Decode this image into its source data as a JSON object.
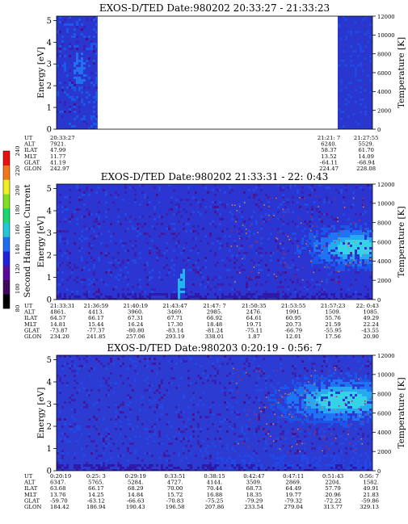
{
  "chart_data": [
    {
      "type": "heatmap",
      "title": "EXOS-D/TED   Date:980202  20:33:27 - 21:33:23",
      "ylabel": "Energy [eV]",
      "y2label": "Temperature [K]",
      "yticks": [
        "0",
        "1",
        "2",
        "3",
        "4",
        "5"
      ],
      "y2ticks": [
        "0",
        "2000",
        "4000",
        "6000",
        "8000",
        "10000",
        "12000"
      ],
      "ylim": [
        0,
        5.2
      ],
      "y2lim": [
        0,
        12000
      ],
      "data_segments": [
        [
          0,
          0.13
        ],
        [
          0.89,
          1.0
        ]
      ],
      "info_labels": [
        "UT",
        "ALT",
        "ILAT",
        "MLT",
        "GLAT",
        "GLON"
      ],
      "info_columns": [
        {
          "pos": 0.0,
          "values": [
            "20:33:27",
            "7921.",
            "47.99",
            "11.77",
            "41.19",
            "242.97"
          ]
        },
        {
          "pos": 0.862,
          "values": [
            "21:21: 7",
            "6240.",
            "58.37",
            "13.52",
            "-64.11",
            "224.47"
          ]
        },
        {
          "pos": 0.98,
          "values": [
            "21:27:55",
            "5529.",
            "61.70",
            "14.09",
            "-68.94",
            "228.08"
          ]
        }
      ]
    },
    {
      "type": "heatmap",
      "title": "EXOS-D/TED   Date:980202  21:33:31 - 22: 0:43",
      "ylabel": "Energy [eV]",
      "y2label": "Temperature [K]",
      "yticks": [
        "0",
        "1",
        "2",
        "3",
        "4",
        "5"
      ],
      "y2ticks": [
        "0",
        "2000",
        "4000",
        "6000",
        "8000",
        "10000",
        "12000"
      ],
      "ylim": [
        0,
        5.2
      ],
      "y2lim": [
        0,
        12000
      ],
      "data_segments": [
        [
          0,
          1.0
        ]
      ],
      "info_labels": [
        "UT",
        "ALT",
        "ILAT",
        "MLT",
        "GLAT",
        "GLON"
      ],
      "info_columns": [
        {
          "pos": 0.0,
          "values": [
            "21:33:31",
            "4861.",
            "64.57",
            "14.81",
            "-73.87",
            "234.20"
          ]
        },
        {
          "pos": 0.125,
          "values": [
            "21:36:59",
            "4413.",
            "66.17",
            "15.44",
            "-77.37",
            "241.85"
          ]
        },
        {
          "pos": 0.25,
          "values": [
            "21:40:19",
            "3960.",
            "67.31",
            "16.24",
            "-80.80",
            "257.06"
          ]
        },
        {
          "pos": 0.375,
          "values": [
            "21:43:47",
            "3469.",
            "67.71",
            "17.30",
            "-83.14",
            "293.19"
          ]
        },
        {
          "pos": 0.5,
          "values": [
            "21:47: 7",
            "2985.",
            "66.92",
            "18.48",
            "-81.24",
            "338.01"
          ]
        },
        {
          "pos": 0.625,
          "values": [
            "21:50:35",
            "2476.",
            "64.61",
            "19.71",
            "-75.11",
            "1.87"
          ]
        },
        {
          "pos": 0.75,
          "values": [
            "21:53:55",
            "1991.",
            "60.95",
            "20.73",
            "-66.79",
            "12.01"
          ]
        },
        {
          "pos": 0.875,
          "values": [
            "21:57:23",
            "1509.",
            "55.76",
            "21.59",
            "-55.95",
            "17.56"
          ]
        },
        {
          "pos": 1.0,
          "values": [
            "22: 0:43",
            "1085.",
            "49.29",
            "22.24",
            "-43.55",
            "20.90"
          ]
        }
      ]
    },
    {
      "type": "heatmap",
      "title": "EXOS-D/TED   Date:980203  0:20:19 - 0:56: 7",
      "ylabel": "Energy [eV]",
      "y2label": "Temperature [K]",
      "yticks": [
        "0",
        "1",
        "2",
        "3",
        "4",
        "5"
      ],
      "y2ticks": [
        "0",
        "2000",
        "4000",
        "6000",
        "8000",
        "10000",
        "12000"
      ],
      "ylim": [
        0,
        5.2
      ],
      "y2lim": [
        0,
        12000
      ],
      "data_segments": [
        [
          0,
          1.0
        ]
      ],
      "info_labels": [
        "UT",
        "ALT",
        "ILAT",
        "MLT",
        "GLAT",
        "GLON"
      ],
      "info_columns": [
        {
          "pos": 0.0,
          "values": [
            "0:20:19",
            "6347.",
            "63.68",
            "13.76",
            "-59.70",
            "184.42"
          ]
        },
        {
          "pos": 0.125,
          "values": [
            "0:25: 3",
            "5765.",
            "66.17",
            "14.25",
            "-63.12",
            "186.94"
          ]
        },
        {
          "pos": 0.25,
          "values": [
            "0:29:19",
            "5284.",
            "68.29",
            "14.84",
            "-66.63",
            "190.43"
          ]
        },
        {
          "pos": 0.375,
          "values": [
            "0:33:51",
            "4727.",
            "70.00",
            "15.72",
            "-70.83",
            "196.58"
          ]
        },
        {
          "pos": 0.5,
          "values": [
            "0:38:15",
            "4144.",
            "70.44",
            "16.88",
            "-75.25",
            "207.86"
          ]
        },
        {
          "pos": 0.625,
          "values": [
            "0:42:47",
            "3509.",
            "68.73",
            "18.35",
            "-79.29",
            "233.54"
          ]
        },
        {
          "pos": 0.75,
          "values": [
            "0:47:11",
            "2869.",
            "64.49",
            "19.77",
            "-79.32",
            "279.04"
          ]
        },
        {
          "pos": 0.875,
          "values": [
            "0:51:43",
            "2204.",
            "57.79",
            "20.96",
            "-72.22",
            "313.77"
          ]
        },
        {
          "pos": 1.0,
          "values": [
            "0:56: 7",
            "1582.",
            "49.91",
            "21.83",
            "-59.86",
            "329.13"
          ]
        }
      ]
    }
  ],
  "colorbar": {
    "label": "Second Harmonic Current",
    "ticks": [
      "80",
      "100",
      "120",
      "140",
      "160",
      "180",
      "200",
      "220",
      "240"
    ],
    "range": [
      80,
      240
    ],
    "colors": [
      "#000000",
      "#3c0a5a",
      "#5a0a9a",
      "#1e22dc",
      "#1e6cf0",
      "#22c8d8",
      "#18d870",
      "#80e020",
      "#f0f020",
      "#f07818",
      "#e81010"
    ]
  }
}
